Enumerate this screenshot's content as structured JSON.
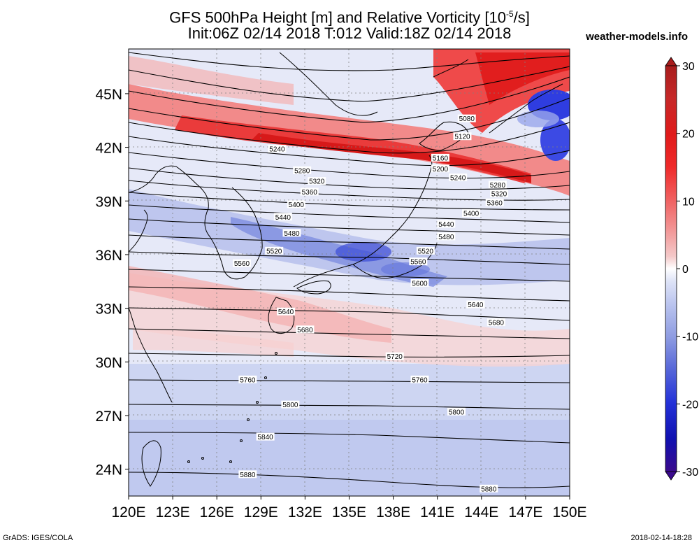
{
  "title": {
    "line1_main": "GFS 500hPa Height [m] and Relative Vorticity [10",
    "line1_exp": "-5",
    "line1_tail": "/s]",
    "line2": "Init:06Z 02/14 2018 T:012 Valid:18Z 02/14 2018"
  },
  "site": "weather-models.info",
  "footer": {
    "left": "GrADS: IGES/COLA",
    "right": "2018-02-14-18:28"
  },
  "axes": {
    "lon_labels": [
      "120E",
      "123E",
      "126E",
      "129E",
      "132E",
      "135E",
      "138E",
      "141E",
      "144E",
      "147E",
      "150E"
    ],
    "lat_labels": [
      "24N",
      "27N",
      "30N",
      "33N",
      "36N",
      "39N",
      "42N",
      "45N"
    ],
    "lon_range": [
      120,
      150
    ],
    "lat_range": [
      22.5,
      47.5
    ]
  },
  "colorbar": {
    "tick_labels": [
      "30",
      "20",
      "10",
      "0",
      "-10",
      "-20",
      "-30"
    ],
    "range": [
      -30,
      30
    ],
    "colors_high": [
      "#ffffff",
      "#f4c9c9",
      "#f29a9a",
      "#f06060",
      "#ef2a2a",
      "#e01a1a",
      "#c62828",
      "#a81d1d"
    ],
    "colors_low": [
      "#ffffff",
      "#dfe4f7",
      "#b9c3ee",
      "#8d9be1",
      "#5565d8",
      "#2432d8",
      "#1010b0",
      "#3a0a8c"
    ]
  },
  "contours": [
    {
      "label": "5080",
      "label_pos": [
        143,
        43.6
      ]
    },
    {
      "label": "5120",
      "label_pos": [
        142.7,
        42.6
      ]
    },
    {
      "label": "5160",
      "label_pos": [
        141.2,
        41.4
      ]
    },
    {
      "label": "5200",
      "label_pos": [
        141.2,
        40.8
      ]
    },
    {
      "label": "5240",
      "label_pos": [
        130.1,
        41.9
      ]
    },
    {
      "label": "5240",
      "label_pos": [
        142.4,
        40.3
      ]
    },
    {
      "label": "5280",
      "label_pos": [
        131.8,
        40.7
      ]
    },
    {
      "label": "5280",
      "label_pos": [
        145.1,
        39.9
      ]
    },
    {
      "label": "5320",
      "label_pos": [
        132.8,
        40.1
      ]
    },
    {
      "label": "5320",
      "label_pos": [
        145.2,
        39.4
      ]
    },
    {
      "label": "5360",
      "label_pos": [
        132.3,
        39.5
      ]
    },
    {
      "label": "5360",
      "label_pos": [
        144.9,
        38.9
      ]
    },
    {
      "label": "5400",
      "label_pos": [
        131.4,
        38.8
      ]
    },
    {
      "label": "5400",
      "label_pos": [
        143.3,
        38.3
      ]
    },
    {
      "label": "5440",
      "label_pos": [
        130.5,
        38.1
      ]
    },
    {
      "label": "5440",
      "label_pos": [
        141.6,
        37.7
      ]
    },
    {
      "label": "5480",
      "label_pos": [
        131.1,
        37.2
      ]
    },
    {
      "label": "5480",
      "label_pos": [
        141.6,
        37.0
      ]
    },
    {
      "label": "5520",
      "label_pos": [
        129.9,
        36.2
      ]
    },
    {
      "label": "5520",
      "label_pos": [
        140.2,
        36.2
      ]
    },
    {
      "label": "5560",
      "label_pos": [
        127.7,
        35.5
      ]
    },
    {
      "label": "5560",
      "label_pos": [
        139.7,
        35.6
      ]
    },
    {
      "label": "5600",
      "label_pos": [
        139.8,
        34.4
      ]
    },
    {
      "label": "5640",
      "label_pos": [
        130.7,
        32.8
      ]
    },
    {
      "label": "5640",
      "label_pos": [
        143.6,
        33.2
      ]
    },
    {
      "label": "5680",
      "label_pos": [
        132.0,
        31.8
      ]
    },
    {
      "label": "5680",
      "label_pos": [
        145.0,
        32.2
      ]
    },
    {
      "label": "5720",
      "label_pos": [
        138.1,
        30.3
      ]
    },
    {
      "label": "5760",
      "label_pos": [
        128.1,
        29.0
      ]
    },
    {
      "label": "5760",
      "label_pos": [
        139.8,
        29.0
      ]
    },
    {
      "label": "5800",
      "label_pos": [
        131.0,
        27.6
      ]
    },
    {
      "label": "5800",
      "label_pos": [
        142.3,
        27.2
      ]
    },
    {
      "label": "5840",
      "label_pos": [
        129.3,
        25.8
      ]
    },
    {
      "label": "5880",
      "label_pos": [
        128.1,
        23.7
      ]
    },
    {
      "label": "5880",
      "label_pos": [
        144.5,
        22.9
      ]
    }
  ]
}
